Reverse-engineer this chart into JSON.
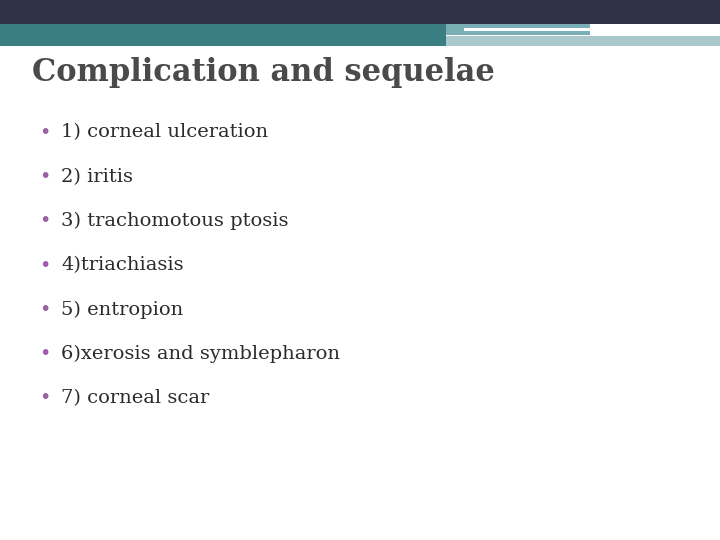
{
  "title": "Complication and sequelae",
  "title_color": "#4a4a4a",
  "title_fontsize": 22,
  "title_font": "DejaVu Serif",
  "bullet_color": "#9b5fa5",
  "text_color": "#2b2b2b",
  "text_fontsize": 14,
  "text_font": "DejaVu Serif",
  "background_color": "#ffffff",
  "header_navy_color": "#2e3347",
  "header_teal_color": "#3a7e82",
  "header_light_teal_color": "#7ab0b5",
  "header_lighter_teal_color": "#a8c8cc",
  "bullets": [
    "1) corneal ulceration",
    "2) iritis",
    "3) trachomotous ptosis",
    "4)triachiasis",
    "5) entropion",
    "6)xerosis and symblepharon",
    "7) corneal scar"
  ]
}
